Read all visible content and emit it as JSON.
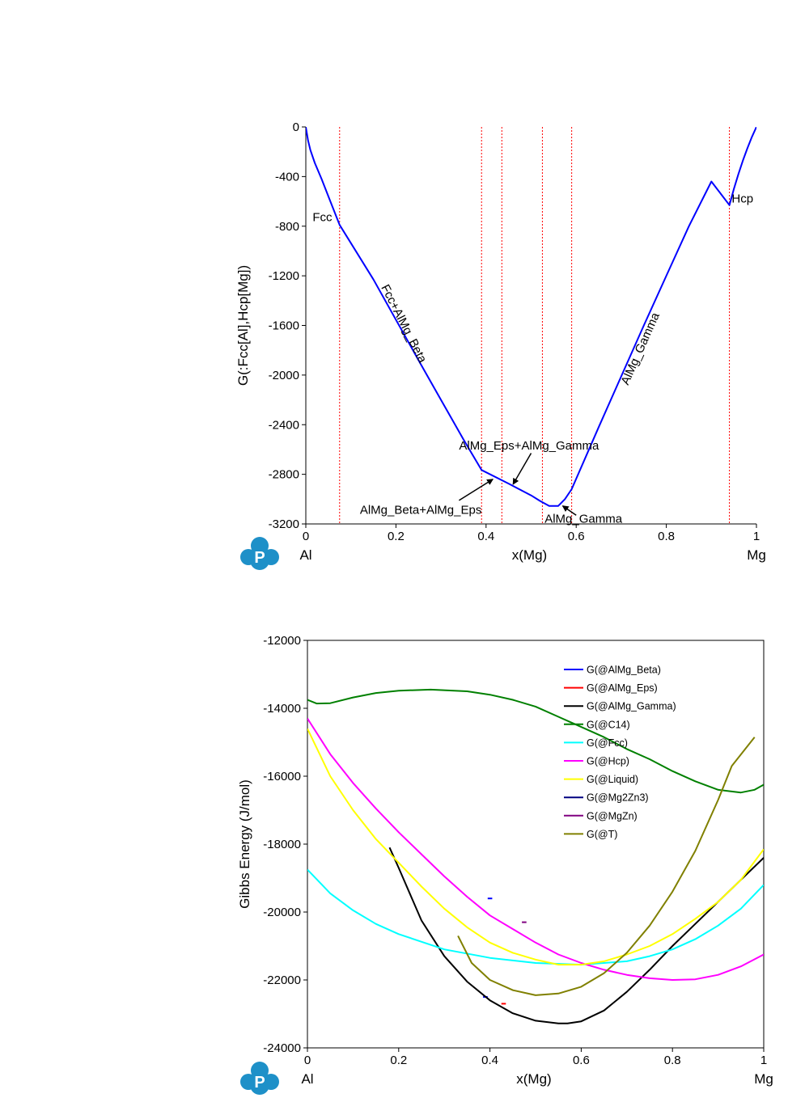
{
  "chart_data": [
    {
      "type": "line",
      "xlabel": "x(Mg)",
      "ylabel": "G(:Fcc[Al],Hcp[Mg])",
      "xlim": [
        0,
        1
      ],
      "ylim": [
        -3200,
        0
      ],
      "x_ticks": [
        0,
        0.2,
        0.4,
        0.6,
        0.8,
        1
      ],
      "x_tick_labels": [
        "0",
        "0.2",
        "0.4",
        "0.6",
        "0.8",
        "1"
      ],
      "y_ticks": [
        0,
        -400,
        -800,
        -1200,
        -1600,
        -2000,
        -2400,
        -2800,
        -3200
      ],
      "y_tick_labels": [
        "0",
        "-400",
        "-800",
        "-1200",
        "-1600",
        "-2000",
        "-2400",
        "-2800",
        "-3200"
      ],
      "x_end_labels": {
        "left": "Al",
        "right": "Mg"
      },
      "series": [
        {
          "color": "#0000ff",
          "points": [
            [
              0,
              0
            ],
            [
              0.005,
              -110
            ],
            [
              0.01,
              -185
            ],
            [
              0.02,
              -290
            ],
            [
              0.035,
              -420
            ],
            [
              0.05,
              -560
            ],
            [
              0.075,
              -790
            ],
            [
              0.15,
              -1230
            ],
            [
              0.25,
              -1880
            ],
            [
              0.3,
              -2200
            ],
            [
              0.35,
              -2520
            ],
            [
              0.39,
              -2765
            ],
            [
              0.45,
              -2875
            ],
            [
              0.5,
              -2970
            ],
            [
              0.52,
              -3015
            ],
            [
              0.54,
              -3055
            ],
            [
              0.56,
              -3055
            ],
            [
              0.575,
              -3000
            ],
            [
              0.59,
              -2920
            ],
            [
              0.65,
              -2420
            ],
            [
              0.7,
              -2010
            ],
            [
              0.75,
              -1600
            ],
            [
              0.8,
              -1200
            ],
            [
              0.85,
              -800
            ],
            [
              0.9,
              -440
            ],
            [
              0.94,
              -630
            ],
            [
              0.95,
              -500
            ],
            [
              0.96,
              -380
            ],
            [
              0.97,
              -270
            ],
            [
              0.98,
              -170
            ],
            [
              0.99,
              -80
            ],
            [
              1,
              0
            ]
          ]
        }
      ],
      "vlines": [
        0.075,
        0.39,
        0.435,
        0.525,
        0.59,
        0.94
      ],
      "vline_color": "#ff0000",
      "region_labels": [
        {
          "text": "Fcc",
          "x": 0.015,
          "y": -760
        },
        {
          "text": "Hcp",
          "x": 0.945,
          "y": -610
        },
        {
          "text": "Fcc+AlMg_Beta",
          "x": 0.21,
          "y": -1600,
          "rotate": 63
        },
        {
          "text": "AlMg_Gamma",
          "x": 0.75,
          "y": -1800,
          "rotate": -66
        }
      ],
      "annotations": [
        {
          "text": "AlMg_Eps+AlMg_Gamma",
          "text_xy": [
            0.34,
            -2600
          ],
          "arrow_from": [
            0.5,
            -2630
          ],
          "arrow_to": [
            0.46,
            -2880
          ]
        },
        {
          "text": "AlMg_Beta+AlMg_Eps",
          "text_xy": [
            0.12,
            -3120
          ],
          "arrow_from": [
            0.34,
            -3010
          ],
          "arrow_to": [
            0.415,
            -2840
          ]
        },
        {
          "text": "AlMg_Gamma",
          "text_xy": [
            0.53,
            -3190
          ],
          "arrow_from": [
            0.6,
            -3130
          ],
          "arrow_to": [
            0.57,
            -3055
          ]
        }
      ]
    },
    {
      "type": "line",
      "xlabel": "x(Mg)",
      "ylabel": "Gibbs Energy (J/mol)",
      "xlim": [
        0,
        1
      ],
      "ylim": [
        -24000,
        -12000
      ],
      "x_ticks": [
        0,
        0.2,
        0.4,
        0.6,
        0.8,
        1
      ],
      "x_tick_labels": [
        "0",
        "0.2",
        "0.4",
        "0.6",
        "0.8",
        "1"
      ],
      "y_ticks": [
        -12000,
        -14000,
        -16000,
        -18000,
        -20000,
        -22000,
        -24000
      ],
      "y_tick_labels": [
        "-12000",
        "-14000",
        "-16000",
        "-18000",
        "-20000",
        "-22000",
        "-24000"
      ],
      "x_end_labels": {
        "left": "Al",
        "right": "Mg"
      },
      "legend_position": "top-right",
      "series": [
        {
          "name": "G(@AlMg_Beta)",
          "color": "#0000ff",
          "points": [
            [
              0.385,
              -22500
            ],
            [
              0.395,
              -22500
            ]
          ]
        },
        {
          "name": "G(@AlMg_Eps)",
          "color": "#ff0000",
          "points": [
            [
              0.425,
              -22700
            ],
            [
              0.435,
              -22700
            ]
          ]
        },
        {
          "name": "G(@AlMg_Gamma)",
          "color": "#000000",
          "points": [
            [
              0.18,
              -18100
            ],
            [
              0.2,
              -18700
            ],
            [
              0.25,
              -20250
            ],
            [
              0.3,
              -21300
            ],
            [
              0.35,
              -22050
            ],
            [
              0.4,
              -22600
            ],
            [
              0.45,
              -22980
            ],
            [
              0.5,
              -23200
            ],
            [
              0.55,
              -23280
            ],
            [
              0.57,
              -23280
            ],
            [
              0.6,
              -23220
            ],
            [
              0.65,
              -22900
            ],
            [
              0.7,
              -22350
            ],
            [
              0.75,
              -21700
            ],
            [
              0.8,
              -21000
            ],
            [
              0.85,
              -20350
            ],
            [
              0.9,
              -19700
            ],
            [
              0.95,
              -19050
            ],
            [
              1,
              -18400
            ]
          ]
        },
        {
          "name": "G(@C14)",
          "color": "#008000",
          "points": [
            [
              0,
              -13750
            ],
            [
              0.02,
              -13860
            ],
            [
              0.05,
              -13850
            ],
            [
              0.1,
              -13680
            ],
            [
              0.15,
              -13550
            ],
            [
              0.2,
              -13480
            ],
            [
              0.27,
              -13450
            ],
            [
              0.35,
              -13500
            ],
            [
              0.4,
              -13600
            ],
            [
              0.45,
              -13750
            ],
            [
              0.5,
              -13950
            ],
            [
              0.55,
              -14250
            ],
            [
              0.6,
              -14550
            ],
            [
              0.65,
              -14850
            ],
            [
              0.7,
              -15200
            ],
            [
              0.75,
              -15500
            ],
            [
              0.8,
              -15850
            ],
            [
              0.85,
              -16150
            ],
            [
              0.9,
              -16400
            ],
            [
              0.95,
              -16480
            ],
            [
              0.98,
              -16400
            ],
            [
              1,
              -16250
            ]
          ]
        },
        {
          "name": "G(@Fcc)",
          "color": "#00ffff",
          "points": [
            [
              0,
              -18750
            ],
            [
              0.05,
              -19450
            ],
            [
              0.1,
              -19950
            ],
            [
              0.15,
              -20350
            ],
            [
              0.2,
              -20650
            ],
            [
              0.3,
              -21100
            ],
            [
              0.4,
              -21350
            ],
            [
              0.5,
              -21500
            ],
            [
              0.6,
              -21550
            ],
            [
              0.7,
              -21450
            ],
            [
              0.75,
              -21300
            ],
            [
              0.8,
              -21100
            ],
            [
              0.85,
              -20800
            ],
            [
              0.9,
              -20400
            ],
            [
              0.95,
              -19900
            ],
            [
              1,
              -19200
            ]
          ]
        },
        {
          "name": "G(@Hcp)",
          "color": "#ff00ff",
          "points": [
            [
              0,
              -14300
            ],
            [
              0.05,
              -15350
            ],
            [
              0.1,
              -16200
            ],
            [
              0.15,
              -16950
            ],
            [
              0.2,
              -17650
            ],
            [
              0.25,
              -18300
            ],
            [
              0.3,
              -18950
            ],
            [
              0.35,
              -19550
            ],
            [
              0.4,
              -20100
            ],
            [
              0.45,
              -20500
            ],
            [
              0.5,
              -20900
            ],
            [
              0.55,
              -21250
            ],
            [
              0.6,
              -21500
            ],
            [
              0.65,
              -21700
            ],
            [
              0.7,
              -21850
            ],
            [
              0.75,
              -21950
            ],
            [
              0.8,
              -22000
            ],
            [
              0.85,
              -21980
            ],
            [
              0.9,
              -21850
            ],
            [
              0.95,
              -21600
            ],
            [
              1,
              -21250
            ]
          ]
        },
        {
          "name": "G(@Liquid)",
          "color": "#ffff00",
          "points": [
            [
              0,
              -14600
            ],
            [
              0.05,
              -16000
            ],
            [
              0.1,
              -17000
            ],
            [
              0.15,
              -17850
            ],
            [
              0.2,
              -18550
            ],
            [
              0.25,
              -19250
            ],
            [
              0.3,
              -19900
            ],
            [
              0.35,
              -20450
            ],
            [
              0.4,
              -20900
            ],
            [
              0.45,
              -21200
            ],
            [
              0.5,
              -21400
            ],
            [
              0.55,
              -21550
            ],
            [
              0.6,
              -21550
            ],
            [
              0.65,
              -21450
            ],
            [
              0.7,
              -21250
            ],
            [
              0.75,
              -21000
            ],
            [
              0.8,
              -20650
            ],
            [
              0.85,
              -20200
            ],
            [
              0.9,
              -19700
            ],
            [
              0.95,
              -19050
            ],
            [
              1,
              -18150
            ]
          ]
        },
        {
          "name": "G(@Mg2Zn3)",
          "color": "#000080",
          "points": []
        },
        {
          "name": "G(@MgZn)",
          "color": "#800080",
          "points": [
            [
              0.47,
              -20300
            ],
            [
              0.48,
              -20300
            ]
          ]
        },
        {
          "name": "G(@T)",
          "color": "#808000",
          "points": [
            [
              0.33,
              -20700
            ],
            [
              0.36,
              -21500
            ],
            [
              0.4,
              -22000
            ],
            [
              0.45,
              -22300
            ],
            [
              0.5,
              -22450
            ],
            [
              0.55,
              -22400
            ],
            [
              0.6,
              -22200
            ],
            [
              0.65,
              -21800
            ],
            [
              0.7,
              -21200
            ],
            [
              0.75,
              -20400
            ],
            [
              0.8,
              -19400
            ],
            [
              0.85,
              -18200
            ],
            [
              0.9,
              -16700
            ],
            [
              0.93,
              -15700
            ],
            [
              0.98,
              -14850
            ]
          ]
        }
      ],
      "extra_marks": [
        {
          "color": "#0000ff",
          "points": [
            [
              0.395,
              -19600
            ],
            [
              0.405,
              -19600
            ]
          ]
        }
      ]
    }
  ]
}
